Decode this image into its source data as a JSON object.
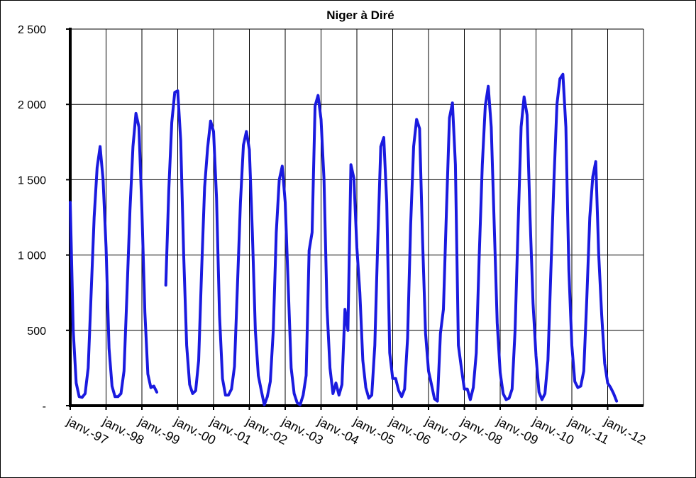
{
  "chart_data": {
    "type": "line",
    "title": "Niger à Diré",
    "xlabel": "",
    "ylabel": "",
    "ylim": [
      0,
      2500
    ],
    "y_ticks": [
      {
        "value": 0,
        "label": "-"
      },
      {
        "value": 500,
        "label": "500"
      },
      {
        "value": 1000,
        "label": "1 000"
      },
      {
        "value": 1500,
        "label": "1 500"
      },
      {
        "value": 2000,
        "label": "2 000"
      },
      {
        "value": 2500,
        "label": "2 500"
      }
    ],
    "x_ticks": [
      {
        "date": "1997-01",
        "label": "janv.-97"
      },
      {
        "date": "1998-01",
        "label": "janv.-98"
      },
      {
        "date": "1999-01",
        "label": "janv.-99"
      },
      {
        "date": "2000-01",
        "label": "janv.-00"
      },
      {
        "date": "2001-01",
        "label": "janv.-01"
      },
      {
        "date": "2002-01",
        "label": "janv.-02"
      },
      {
        "date": "2003-01",
        "label": "janv.-03"
      },
      {
        "date": "2004-01",
        "label": "janv.-04"
      },
      {
        "date": "2005-01",
        "label": "janv.-05"
      },
      {
        "date": "2006-01",
        "label": "janv.-06"
      },
      {
        "date": "2007-01",
        "label": "janv.-07"
      },
      {
        "date": "2008-01",
        "label": "janv.-08"
      },
      {
        "date": "2009-01",
        "label": "janv.-09"
      },
      {
        "date": "2010-01",
        "label": "janv.-10"
      },
      {
        "date": "2011-01",
        "label": "janv.-11"
      },
      {
        "date": "2012-01",
        "label": "janv.-12"
      }
    ],
    "xlim": [
      "1997-01",
      "2013-01"
    ],
    "grid": true,
    "series_color": "#1a1adf",
    "series": [
      {
        "segments": [
          [
            [
              "1997-01",
              1350
            ],
            [
              "1997-02",
              500
            ],
            [
              "1997-03",
              150
            ],
            [
              "1997-04",
              60
            ],
            [
              "1997-05",
              55
            ],
            [
              "1997-06",
              80
            ],
            [
              "1997-07",
              250
            ],
            [
              "1997-08",
              750
            ],
            [
              "1997-09",
              1250
            ],
            [
              "1997-10",
              1580
            ],
            [
              "1997-11",
              1720
            ],
            [
              "1997-12",
              1500
            ],
            [
              "1998-01",
              1050
            ],
            [
              "1998-02",
              380
            ],
            [
              "1998-03",
              130
            ],
            [
              "1998-04",
              60
            ],
            [
              "1998-05",
              60
            ],
            [
              "1998-06",
              80
            ],
            [
              "1998-07",
              230
            ],
            [
              "1998-08",
              750
            ],
            [
              "1998-09",
              1300
            ],
            [
              "1998-10",
              1720
            ],
            [
              "1998-11",
              1940
            ],
            [
              "1998-12",
              1850
            ],
            [
              "1999-01",
              1300
            ],
            [
              "1999-02",
              620
            ],
            [
              "1999-03",
              210
            ],
            [
              "1999-04",
              120
            ],
            [
              "1999-05",
              130
            ],
            [
              "1999-06",
              90
            ]
          ],
          [
            [
              "1999-09",
              800
            ],
            [
              "1999-10",
              1430
            ],
            [
              "1999-11",
              1880
            ],
            [
              "1999-12",
              2080
            ],
            [
              "2000-01",
              2090
            ],
            [
              "2000-02",
              1760
            ],
            [
              "2000-03",
              1000
            ],
            [
              "2000-04",
              400
            ],
            [
              "2000-05",
              140
            ],
            [
              "2000-06",
              80
            ],
            [
              "2000-07",
              100
            ],
            [
              "2000-08",
              300
            ],
            [
              "2000-09",
              900
            ],
            [
              "2000-10",
              1450
            ],
            [
              "2000-11",
              1710
            ],
            [
              "2000-12",
              1890
            ],
            [
              "2001-01",
              1820
            ],
            [
              "2001-02",
              1380
            ],
            [
              "2001-03",
              600
            ],
            [
              "2001-04",
              180
            ],
            [
              "2001-05",
              70
            ],
            [
              "2001-06",
              70
            ],
            [
              "2001-07",
              110
            ],
            [
              "2001-08",
              260
            ],
            [
              "2001-09",
              800
            ],
            [
              "2001-10",
              1350
            ],
            [
              "2001-11",
              1730
            ],
            [
              "2001-12",
              1820
            ],
            [
              "2002-01",
              1700
            ],
            [
              "2002-02",
              1150
            ],
            [
              "2002-03",
              500
            ],
            [
              "2002-04",
              200
            ],
            [
              "2002-05",
              100
            ],
            [
              "2002-06",
              5
            ],
            [
              "2002-07",
              60
            ],
            [
              "2002-08",
              160
            ],
            [
              "2002-09",
              500
            ],
            [
              "2002-10",
              1150
            ],
            [
              "2002-11",
              1500
            ],
            [
              "2002-12",
              1590
            ],
            [
              "2003-01",
              1350
            ],
            [
              "2003-02",
              800
            ],
            [
              "2003-03",
              250
            ],
            [
              "2003-04",
              80
            ],
            [
              "2003-05",
              20
            ],
            [
              "2003-06",
              5
            ],
            [
              "2003-07",
              70
            ],
            [
              "2003-08",
              200
            ],
            [
              "2003-09",
              1030
            ],
            [
              "2003-10",
              1150
            ],
            [
              "2003-11",
              1990
            ],
            [
              "2003-12",
              2060
            ],
            [
              "2004-01",
              1900
            ],
            [
              "2004-02",
              1500
            ],
            [
              "2004-03",
              650
            ],
            [
              "2004-04",
              250
            ],
            [
              "2004-05",
              80
            ],
            [
              "2004-06",
              150
            ],
            [
              "2004-07",
              70
            ],
            [
              "2004-08",
              140
            ],
            [
              "2004-09",
              640
            ],
            [
              "2004-10",
              500
            ],
            [
              "2004-11",
              1600
            ],
            [
              "2004-12",
              1510
            ],
            [
              "2005-01",
              1050
            ],
            [
              "2005-02",
              750
            ],
            [
              "2005-03",
              300
            ],
            [
              "2005-04",
              120
            ],
            [
              "2005-05",
              50
            ],
            [
              "2005-06",
              70
            ],
            [
              "2005-07",
              400
            ],
            [
              "2005-08",
              1100
            ],
            [
              "2005-09",
              1720
            ],
            [
              "2005-10",
              1780
            ],
            [
              "2005-11",
              1350
            ],
            [
              "2005-12",
              350
            ],
            [
              "2006-01",
              180
            ],
            [
              "2006-02",
              180
            ],
            [
              "2006-03",
              100
            ],
            [
              "2006-04",
              60
            ],
            [
              "2006-05",
              110
            ],
            [
              "2006-06",
              450
            ],
            [
              "2006-07",
              1200
            ],
            [
              "2006-08",
              1720
            ],
            [
              "2006-09",
              1900
            ],
            [
              "2006-10",
              1840
            ],
            [
              "2006-11",
              1100
            ],
            [
              "2006-12",
              480
            ],
            [
              "2007-01",
              230
            ],
            [
              "2007-02",
              140
            ],
            [
              "2007-03",
              45
            ],
            [
              "2007-04",
              30
            ],
            [
              "2007-05",
              480
            ],
            [
              "2007-06",
              640
            ],
            [
              "2007-07",
              1300
            ],
            [
              "2007-08",
              1910
            ],
            [
              "2007-09",
              2010
            ],
            [
              "2007-10",
              1600
            ],
            [
              "2007-11",
              400
            ],
            [
              "2007-12",
              250
            ],
            [
              "2008-01",
              110
            ],
            [
              "2008-02",
              110
            ],
            [
              "2008-03",
              40
            ],
            [
              "2008-04",
              120
            ],
            [
              "2008-05",
              350
            ],
            [
              "2008-06",
              1000
            ],
            [
              "2008-07",
              1600
            ],
            [
              "2008-08",
              1990
            ],
            [
              "2008-09",
              2120
            ],
            [
              "2008-10",
              1850
            ],
            [
              "2008-11",
              1200
            ],
            [
              "2008-12",
              550
            ],
            [
              "2009-01",
              220
            ],
            [
              "2009-02",
              80
            ],
            [
              "2009-03",
              40
            ],
            [
              "2009-04",
              50
            ],
            [
              "2009-05",
              110
            ],
            [
              "2009-06",
              500
            ],
            [
              "2009-07",
              1200
            ],
            [
              "2009-08",
              1850
            ],
            [
              "2009-09",
              2050
            ],
            [
              "2009-10",
              1930
            ],
            [
              "2009-11",
              1250
            ],
            [
              "2009-12",
              680
            ],
            [
              "2010-01",
              330
            ],
            [
              "2010-02",
              90
            ],
            [
              "2010-03",
              40
            ],
            [
              "2010-04",
              80
            ],
            [
              "2010-05",
              300
            ],
            [
              "2010-06",
              900
            ],
            [
              "2010-07",
              1500
            ],
            [
              "2010-08",
              2000
            ],
            [
              "2010-09",
              2170
            ],
            [
              "2010-10",
              2200
            ],
            [
              "2010-11",
              1850
            ],
            [
              "2010-12",
              900
            ],
            [
              "2011-01",
              400
            ],
            [
              "2011-02",
              160
            ],
            [
              "2011-03",
              120
            ],
            [
              "2011-04",
              130
            ],
            [
              "2011-05",
              230
            ],
            [
              "2011-06",
              700
            ],
            [
              "2011-07",
              1250
            ],
            [
              "2011-08",
              1520
            ],
            [
              "2011-09",
              1620
            ],
            [
              "2011-10",
              1000
            ],
            [
              "2011-11",
              600
            ],
            [
              "2011-12",
              280
            ],
            [
              "2012-01",
              150
            ],
            [
              "2012-02",
              120
            ],
            [
              "2012-03",
              80
            ],
            [
              "2012-04",
              30
            ]
          ]
        ]
      }
    ]
  }
}
